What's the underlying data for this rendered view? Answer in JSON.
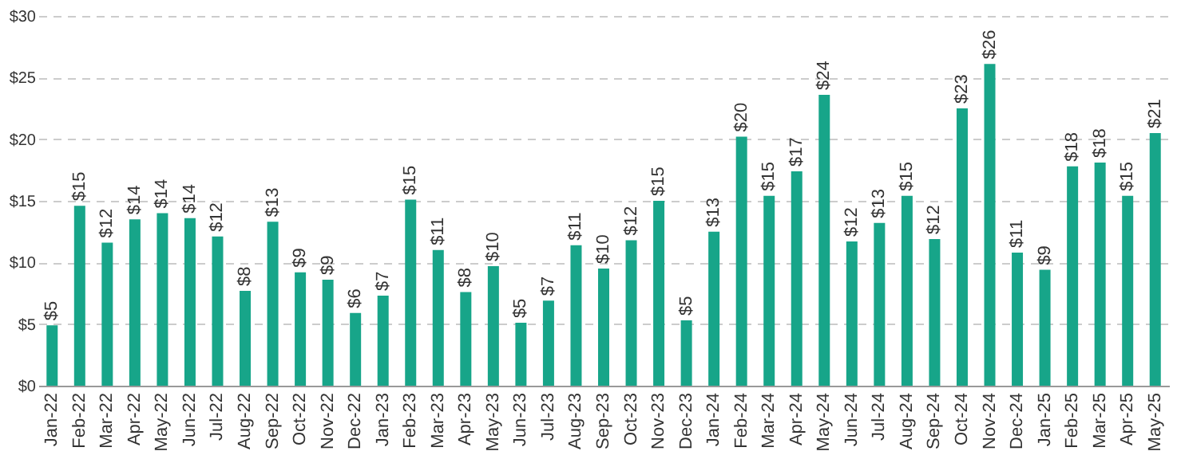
{
  "chart_data": {
    "type": "bar",
    "categories": [
      "Jan-22",
      "Feb-22",
      "Mar-22",
      "Apr-22",
      "May-22",
      "Jun-22",
      "Jul-22",
      "Aug-22",
      "Sep-22",
      "Oct-22",
      "Nov-22",
      "Dec-22",
      "Jan-23",
      "Feb-23",
      "Mar-23",
      "Apr-23",
      "May-23",
      "Jun-23",
      "Jul-23",
      "Aug-23",
      "Sep-23",
      "Oct-23",
      "Nov-23",
      "Dec-23",
      "Jan-24",
      "Feb-24",
      "Mar-24",
      "Apr-24",
      "May-24",
      "Jun-24",
      "Jul-24",
      "Aug-24",
      "Sep-24",
      "Oct-24",
      "Nov-24",
      "Dec-24",
      "Jan-25",
      "Feb-25",
      "Mar-25",
      "Apr-25",
      "May-25"
    ],
    "values": [
      4.9,
      14.6,
      11.6,
      13.5,
      14.0,
      13.6,
      12.1,
      7.7,
      13.3,
      9.2,
      8.6,
      5.9,
      7.3,
      15.1,
      11.0,
      7.6,
      9.7,
      5.1,
      6.9,
      11.4,
      9.5,
      11.8,
      15.0,
      5.3,
      12.5,
      20.2,
      15.4,
      17.4,
      23.6,
      11.7,
      13.2,
      15.4,
      11.9,
      22.5,
      26.1,
      10.8,
      9.4,
      17.8,
      18.1,
      15.4,
      20.5
    ],
    "value_labels": [
      "$5",
      "$15",
      "$12",
      "$14",
      "$14",
      "$14",
      "$12",
      "$8",
      "$13",
      "$9",
      "$9",
      "$6",
      "$7",
      "$15",
      "$11",
      "$8",
      "$10",
      "$5",
      "$7",
      "$11",
      "$10",
      "$12",
      "$15",
      "$5",
      "$13",
      "$20",
      "$15",
      "$17",
      "$24",
      "$12",
      "$13",
      "$15",
      "$12",
      "$23",
      "$26",
      "$11",
      "$9",
      "$18",
      "$18",
      "$15",
      "$21"
    ],
    "color": "#17a589",
    "ylim": [
      0,
      30
    ],
    "yticks": [
      {
        "value": 0,
        "label": "$0"
      },
      {
        "value": 5,
        "label": "$5"
      },
      {
        "value": 10,
        "label": "$10"
      },
      {
        "value": 15,
        "label": "$15"
      },
      {
        "value": 20,
        "label": "$20"
      },
      {
        "value": 25,
        "label": "$25"
      },
      {
        "value": 30,
        "label": "$30"
      }
    ],
    "grid": "y"
  }
}
